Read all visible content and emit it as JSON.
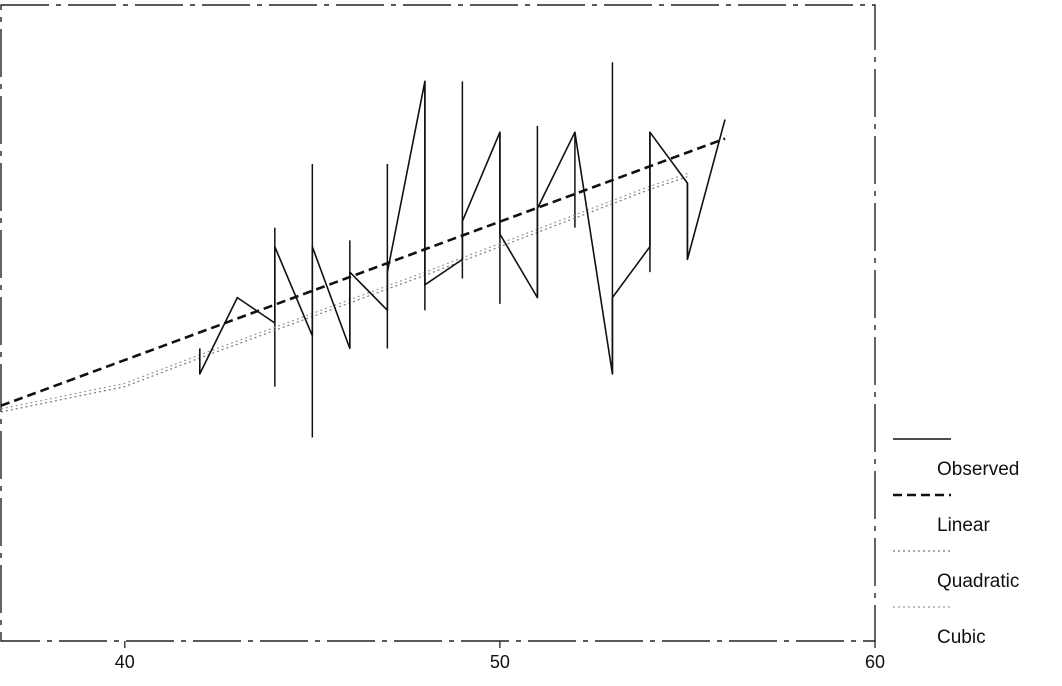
{
  "chart_data": {
    "type": "line",
    "title": "",
    "xlabel": "",
    "ylabel": "",
    "xlim": [
      36.7,
      60
    ],
    "ylim": [
      0,
      100
    ],
    "x_ticks": [
      {
        "value": 40,
        "label": "40"
      },
      {
        "value": 50,
        "label": "50"
      },
      {
        "value": 60,
        "label": "60"
      }
    ],
    "grid": false,
    "legend_position": "right",
    "series": [
      {
        "name": "Observed",
        "style": "solid",
        "color": "#111111",
        "x": [
          42,
          42,
          43,
          44,
          44,
          45,
          45,
          46,
          46,
          47,
          47,
          48,
          48,
          49,
          49,
          50,
          50,
          51,
          51,
          52,
          53,
          53,
          54,
          54,
          55,
          55,
          56
        ],
        "y": [
          46,
          42,
          54,
          50,
          62,
          48,
          62,
          46,
          58,
          52,
          58,
          88,
          56,
          60,
          66,
          80,
          64,
          54,
          68,
          80,
          42,
          54,
          62,
          80,
          72,
          60,
          82
        ]
      },
      {
        "name": "Linear",
        "style": "dashed",
        "color": "#111111",
        "x": [
          36.7,
          56
        ],
        "y": [
          37,
          79
        ]
      },
      {
        "name": "Quadratic",
        "style": "dotted",
        "color": "#777777",
        "x": [
          36.7,
          40,
          42,
          45,
          48,
          50,
          52,
          54,
          55
        ],
        "y": [
          36,
          40,
          44.5,
          51,
          57.5,
          62,
          66.5,
          71,
          73
        ]
      },
      {
        "name": "Cubic",
        "style": "dotted",
        "color": "#999999",
        "x": [
          36.7,
          40,
          42,
          45,
          48,
          50,
          52,
          54,
          55
        ],
        "y": [
          36.5,
          40.5,
          45,
          51.5,
          58,
          62.5,
          67,
          71.5,
          73.5
        ]
      }
    ],
    "error_bars": [
      {
        "x": 44,
        "low": 40,
        "high": 65
      },
      {
        "x": 45,
        "low": 32,
        "high": 75
      },
      {
        "x": 46,
        "low": 46,
        "high": 63
      },
      {
        "x": 47,
        "low": 46,
        "high": 75
      },
      {
        "x": 48,
        "low": 52,
        "high": 88
      },
      {
        "x": 49,
        "low": 57,
        "high": 88
      },
      {
        "x": 50,
        "low": 53,
        "high": 80
      },
      {
        "x": 51,
        "low": 54,
        "high": 81
      },
      {
        "x": 52,
        "low": 65,
        "high": 80
      },
      {
        "x": 53,
        "low": 42,
        "high": 91
      },
      {
        "x": 54,
        "low": 58,
        "high": 80
      },
      {
        "x": 55,
        "low": 60,
        "high": 72
      }
    ]
  }
}
